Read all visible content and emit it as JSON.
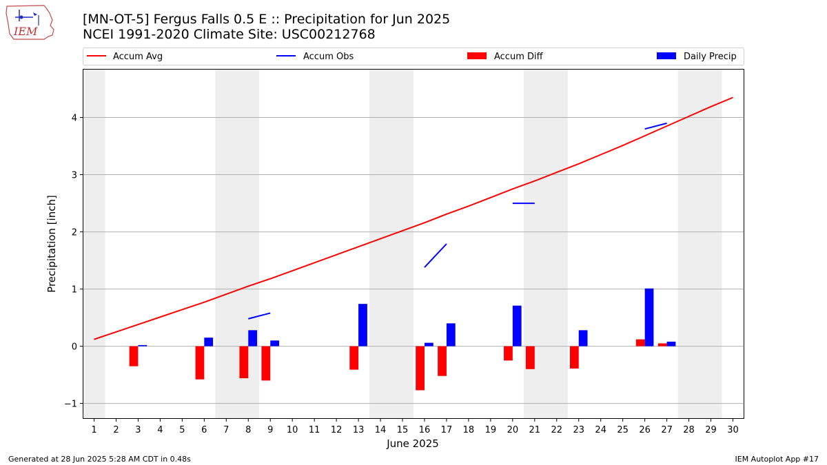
{
  "header": {
    "logo_text": "IEM",
    "title_line1": "[MN-OT-5] Fergus Falls 0.5 E :: Precipitation for Jun 2025",
    "title_line2": "NCEI 1991-2020 Climate Site: USC00212768"
  },
  "footer": {
    "generated": "Generated at 28 Jun 2025 5:28 AM CDT in 0.48s",
    "app": "IEM Autoplot App #17"
  },
  "colors": {
    "accum_avg": "#ff0000",
    "accum_obs": "#0000ff",
    "accum_diff": "#ff0000",
    "daily_precip": "#0000ff",
    "weekend_shade": "#eeeeee",
    "grid": "#b0b0b0"
  },
  "chart_data": {
    "type": "bar",
    "title": "[MN-OT-5] Fergus Falls 0.5 E :: Precipitation for Jun 2025",
    "subtitle": "NCEI 1991-2020 Climate Site: USC00212768",
    "xlabel": "June 2025",
    "ylabel": "Precipitation [inch]",
    "x": [
      1,
      2,
      3,
      4,
      5,
      6,
      7,
      8,
      9,
      10,
      11,
      12,
      13,
      14,
      15,
      16,
      17,
      18,
      19,
      20,
      21,
      22,
      23,
      24,
      25,
      26,
      27,
      28,
      29,
      30
    ],
    "xticks": [
      "1",
      "2",
      "3",
      "4",
      "5",
      "6",
      "7",
      "8",
      "9",
      "10",
      "11",
      "12",
      "13",
      "14",
      "15",
      "16",
      "17",
      "18",
      "19",
      "20",
      "21",
      "22",
      "23",
      "24",
      "25",
      "26",
      "27",
      "28",
      "29",
      "30"
    ],
    "ylim": [
      -1.27,
      4.85
    ],
    "yticks": [
      -1,
      0,
      1,
      2,
      3,
      4
    ],
    "ytick_labels": [
      "−1",
      "0",
      "1",
      "2",
      "3",
      "4"
    ],
    "grid": true,
    "legend_position": "top",
    "shaded_days": [
      1,
      7,
      8,
      14,
      15,
      21,
      22,
      28,
      29
    ],
    "series": [
      {
        "name": "Accum Avg",
        "kind": "line",
        "values": [
          0.12,
          0.25,
          0.38,
          0.51,
          0.64,
          0.77,
          0.91,
          1.05,
          1.18,
          1.32,
          1.46,
          1.6,
          1.74,
          1.88,
          2.02,
          2.16,
          2.31,
          2.45,
          2.6,
          2.75,
          2.89,
          3.04,
          3.19,
          3.35,
          3.51,
          3.68,
          3.85,
          4.02,
          4.19,
          4.35
        ]
      },
      {
        "name": "Accum Obs",
        "kind": "segments",
        "segments": [
          {
            "x": [
              8,
              9
            ],
            "y": [
              0.48,
              0.58
            ]
          },
          {
            "x": [
              16,
              17
            ],
            "y": [
              1.38,
              1.79
            ]
          },
          {
            "x": [
              20,
              21
            ],
            "y": [
              2.5,
              2.5
            ]
          },
          {
            "x": [
              26,
              27
            ],
            "y": [
              3.8,
              3.9
            ]
          }
        ]
      },
      {
        "name": "Accum Diff",
        "kind": "bar",
        "x": [
          3,
          6,
          8,
          9,
          13,
          16,
          17,
          20,
          21,
          23,
          26,
          27
        ],
        "values": [
          -0.35,
          -0.58,
          -0.56,
          -0.6,
          -0.41,
          -0.77,
          -0.52,
          -0.25,
          -0.4,
          -0.39,
          0.12,
          0.05
        ]
      },
      {
        "name": "Daily Precip",
        "kind": "bar",
        "x": [
          3,
          6,
          8,
          9,
          13,
          16,
          17,
          20,
          23,
          26,
          27
        ],
        "values": [
          0.02,
          0.15,
          0.28,
          0.1,
          0.74,
          0.06,
          0.4,
          0.71,
          0.28,
          1.01,
          0.08
        ]
      }
    ]
  }
}
